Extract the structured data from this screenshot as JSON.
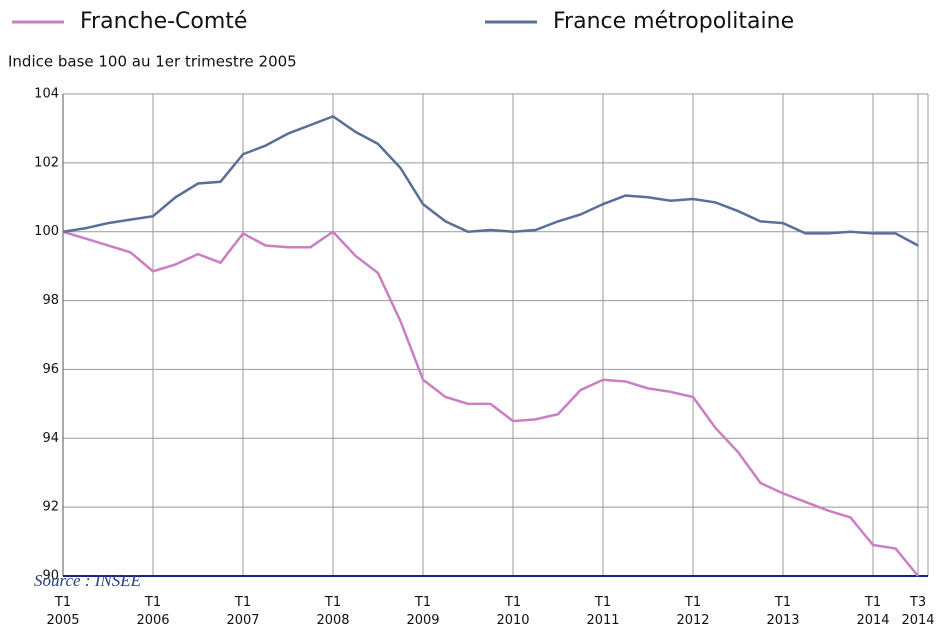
{
  "chart_data": {
    "type": "line",
    "subtitle": "Indice base 100 au 1er trimestre 2005",
    "source": "Source : INSEE",
    "categories": [
      "T1 2005",
      null,
      null,
      null,
      "T1 2006",
      null,
      null,
      null,
      "T1 2007",
      null,
      null,
      null,
      "T1 2008",
      null,
      null,
      null,
      "T1 2009",
      null,
      null,
      null,
      "T1 2010",
      null,
      null,
      null,
      "T1 2011",
      null,
      null,
      null,
      "T1 2012",
      null,
      null,
      null,
      "T1 2013",
      null,
      null,
      null,
      "T1 2014",
      null,
      "T3 2014"
    ],
    "series": [
      {
        "name": "Franche-Comté",
        "color": "#c97fc0",
        "values": [
          100,
          99.8,
          99.6,
          99.4,
          98.85,
          99.05,
          99.35,
          99.1,
          99.95,
          99.6,
          99.55,
          99.55,
          100,
          99.3,
          98.8,
          97.4,
          95.7,
          95.2,
          95.0,
          95.0,
          94.5,
          94.55,
          94.7,
          95.4,
          95.7,
          95.65,
          95.45,
          95.35,
          95.2,
          94.3,
          93.6,
          92.7,
          92.4,
          92.15,
          91.9,
          91.7,
          90.9,
          90.8,
          90.0
        ]
      },
      {
        "name": "France métropolitaine",
        "color": "#5a6f98",
        "values": [
          100,
          100.1,
          100.25,
          100.35,
          100.45,
          101.0,
          101.4,
          101.45,
          102.25,
          102.5,
          102.85,
          103.1,
          103.35,
          102.9,
          102.55,
          101.85,
          100.8,
          100.3,
          100.0,
          100.05,
          100.0,
          100.05,
          100.3,
          100.5,
          100.8,
          101.05,
          101.0,
          100.9,
          100.95,
          100.85,
          100.6,
          100.3,
          100.25,
          99.95,
          99.95,
          100.0,
          99.95,
          99.95,
          99.6
        ]
      }
    ],
    "ylim": [
      90,
      104
    ],
    "yticks": [
      90,
      92,
      94,
      96,
      98,
      100,
      102,
      104
    ],
    "grid": true
  }
}
